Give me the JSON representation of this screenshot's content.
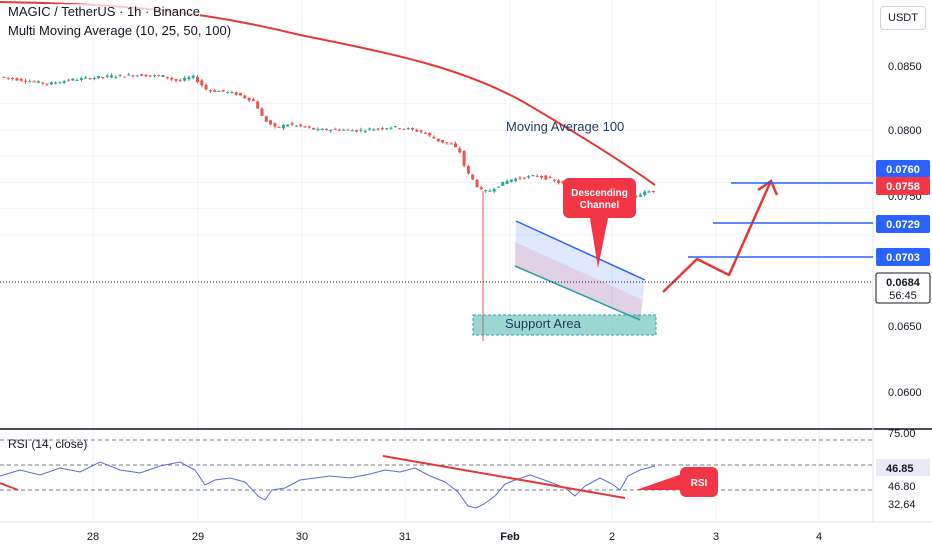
{
  "header": {
    "symbol_line": "MAGIC / TetherUS · 1h · Binance",
    "indicator_line": "Multi Moving Average (10, 25, 50, 100)"
  },
  "unit_button": "USDT",
  "rsi_panel": {
    "title": "RSI (14, close)",
    "levels": [
      75.0,
      46.8,
      32.64
    ],
    "current": 46.85
  },
  "chart_data": {
    "type": "line",
    "price_axis": {
      "ticks": [
        "0.0850",
        "0.0800",
        "0.0750",
        "0.0650",
        "0.0600"
      ],
      "range": [
        0.0585,
        0.09
      ]
    },
    "time_axis": {
      "ticks": [
        "28",
        "29",
        "30",
        "31",
        "Feb",
        "2",
        "3",
        "4"
      ]
    },
    "current_price": "0.0684",
    "countdown": "56:45",
    "target_labels": [
      "0.0760",
      "0.0758",
      "0.0729",
      "0.0703"
    ],
    "annotations": {
      "ma_label": "Moving Average 100",
      "descending_channel": "Descending Channel",
      "support_area": "Support Area",
      "rsi_callout": "RSI"
    },
    "rsi_axis_labels": [
      "75.00",
      "46.85",
      "46.80",
      "32.64"
    ],
    "colors": {
      "up": "#26a69a",
      "down": "#ef5350",
      "ma100": "#e53935",
      "target_line": "#2962ff",
      "current_price": "#131722"
    }
  }
}
